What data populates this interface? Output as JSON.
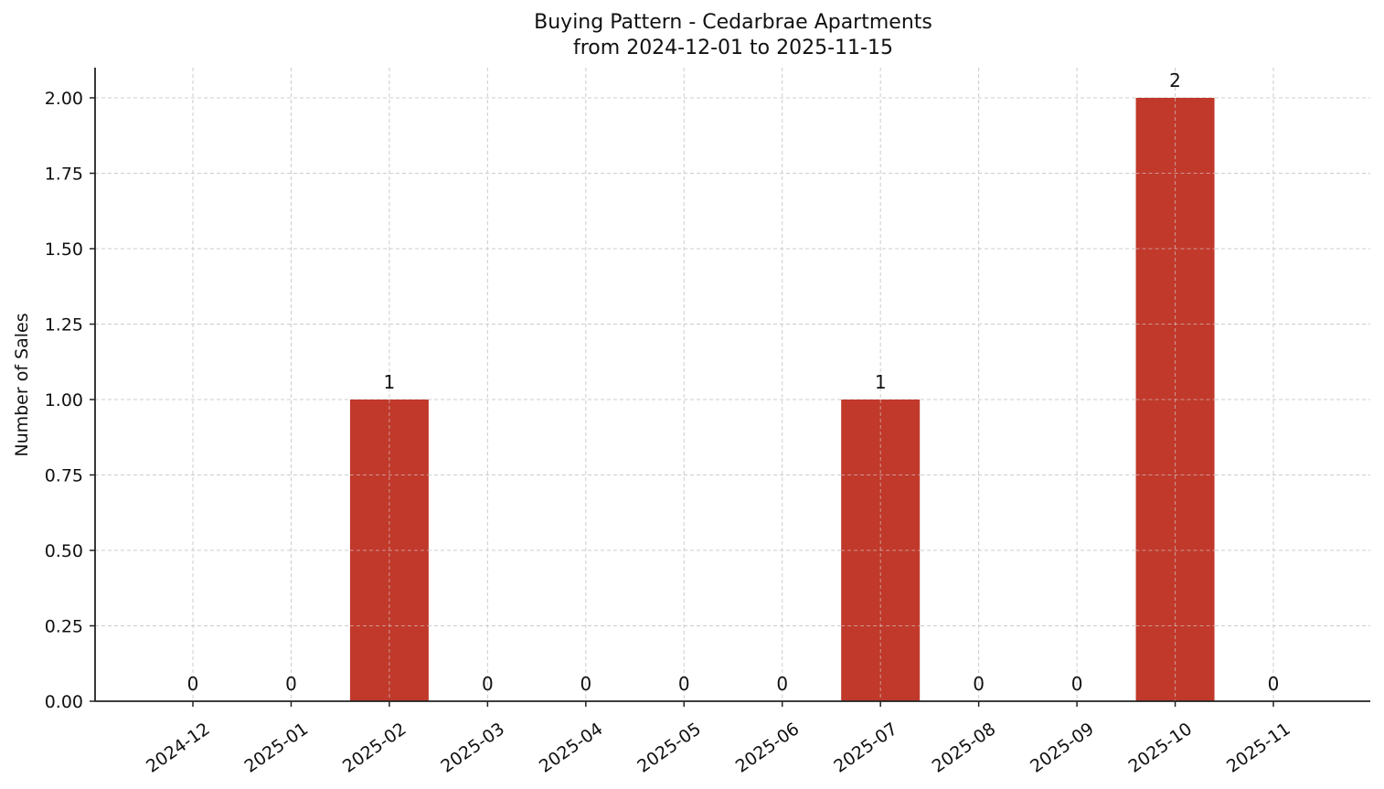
{
  "chart_data": {
    "type": "bar",
    "title": "Buying Pattern - Cedarbrae Apartments",
    "subtitle": "from 2024-12-01 to 2025-11-15",
    "xlabel": "",
    "ylabel": "Number of Sales",
    "categories": [
      "2024-12",
      "2025-01",
      "2025-02",
      "2025-03",
      "2025-04",
      "2025-05",
      "2025-06",
      "2025-07",
      "2025-08",
      "2025-09",
      "2025-10",
      "2025-11"
    ],
    "values": [
      0,
      0,
      1,
      0,
      0,
      0,
      0,
      1,
      0,
      0,
      2,
      0
    ],
    "data_labels": [
      "0",
      "0",
      "1",
      "0",
      "0",
      "0",
      "0",
      "1",
      "0",
      "0",
      "2",
      "0"
    ],
    "ylim": [
      0,
      2.1
    ],
    "yticks": [
      0.0,
      0.25,
      0.5,
      0.75,
      1.0,
      1.25,
      1.5,
      1.75,
      2.0
    ],
    "ytick_labels": [
      "0.00",
      "0.25",
      "0.50",
      "0.75",
      "1.00",
      "1.25",
      "1.50",
      "1.75",
      "2.00"
    ],
    "grid": true,
    "grid_style": "dashed",
    "legend": null,
    "bar_color": "#c0392b",
    "xtick_rotation": -35
  }
}
